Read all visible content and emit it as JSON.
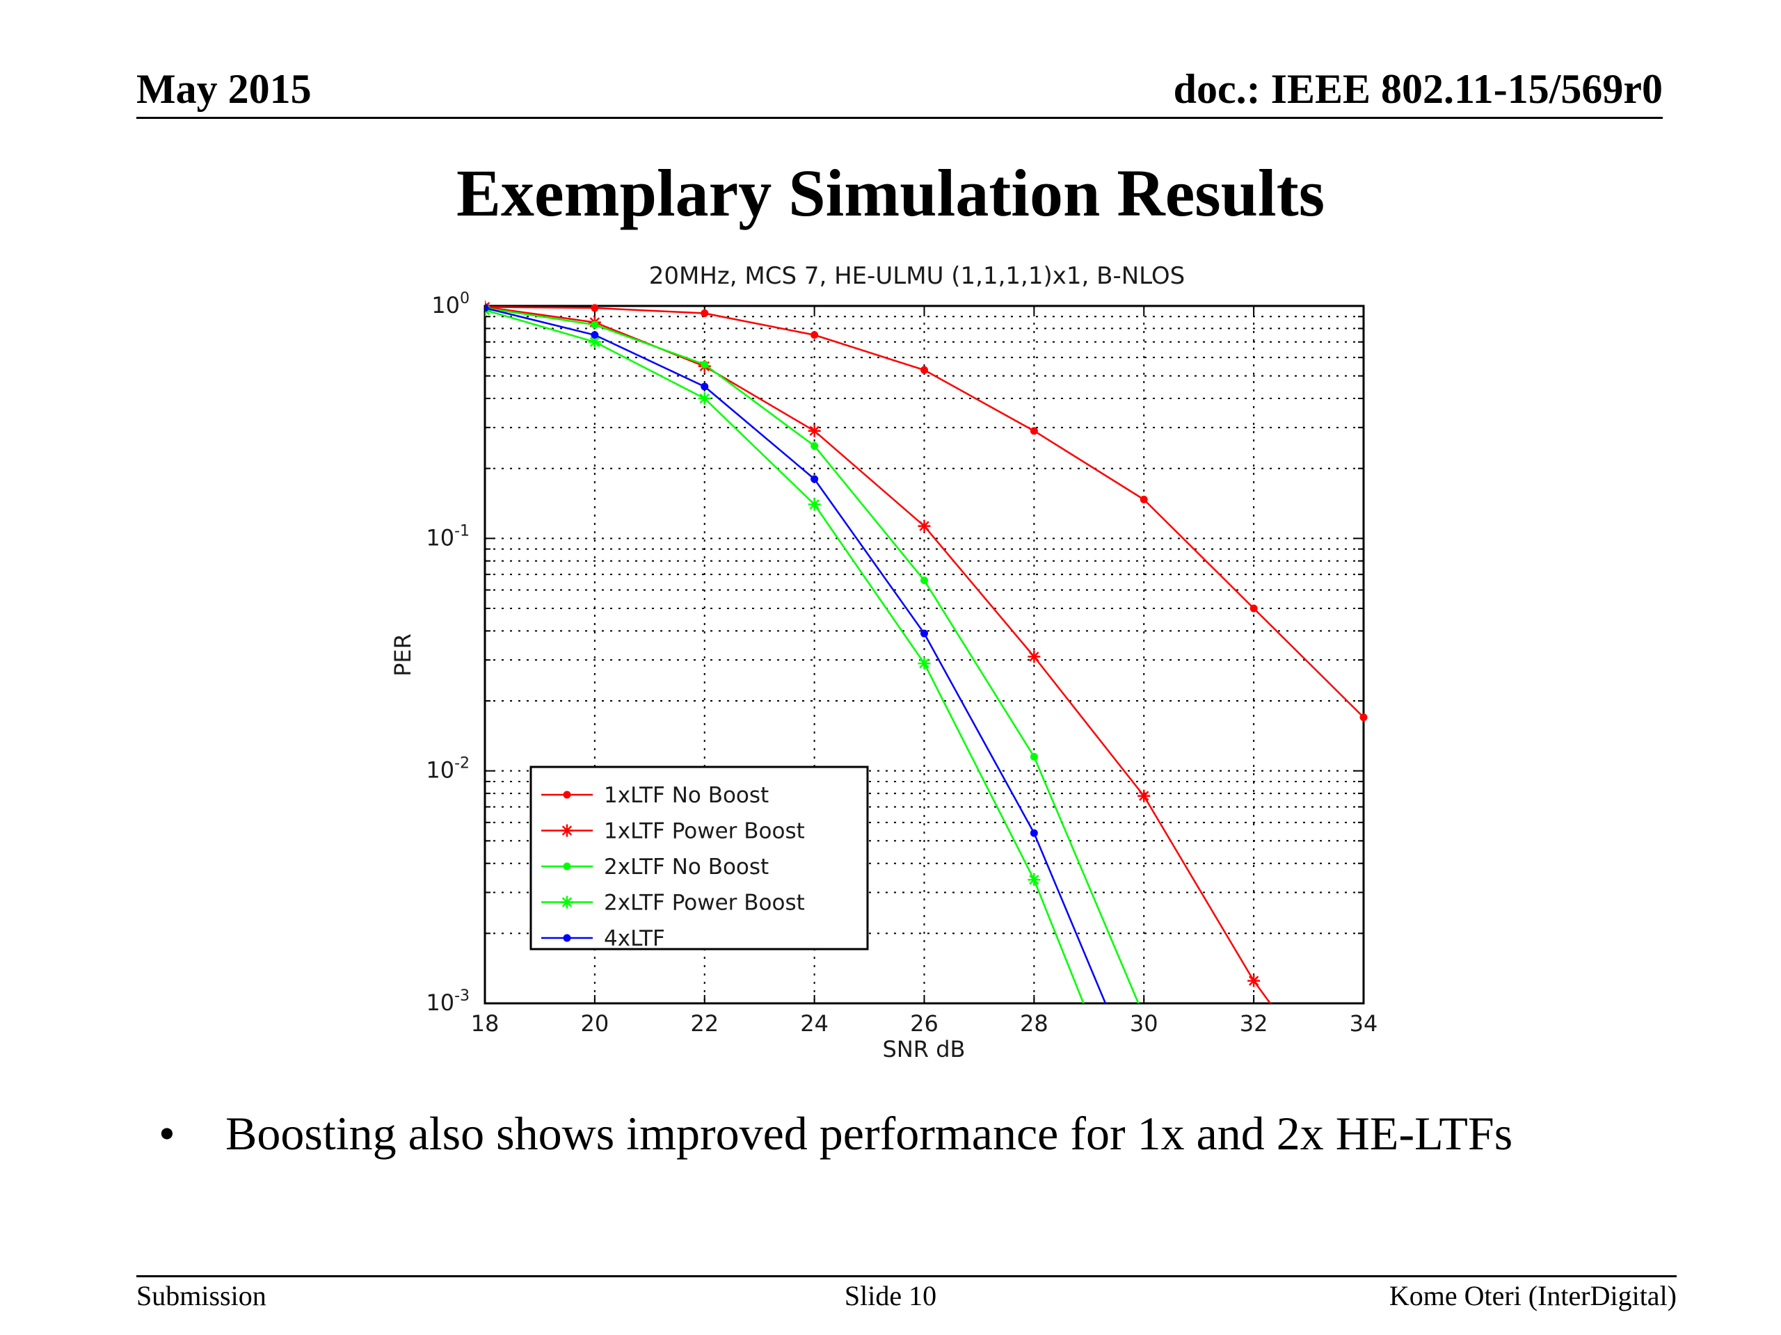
{
  "header": {
    "date": "May 2015",
    "doc": "doc.: IEEE 802.11-15/569r0"
  },
  "slide": {
    "title": "Exemplary Simulation Results",
    "bullets": [
      "Boosting also shows improved performance for 1x and 2x HE-LTFs"
    ],
    "bullet_marker": "•"
  },
  "footer": {
    "left": "Submission",
    "center": "Slide 10",
    "right": "Kome Oteri (InterDigital)"
  },
  "chart_data": {
    "type": "line",
    "title": "20MHz, MCS 7, HE-ULMU (1,1,1,1)x1, B-NLOS",
    "xlabel": "SNR dB",
    "ylabel": "PER",
    "xlim": [
      18,
      34
    ],
    "ylim": [
      0.001,
      1
    ],
    "yscale": "log",
    "grid": true,
    "legend_position": "bottom-left",
    "xticks": [
      18,
      20,
      22,
      24,
      26,
      28,
      30,
      32,
      34
    ],
    "yticks": [
      {
        "value": 1,
        "base": "10",
        "exp": "0"
      },
      {
        "value": 0.1,
        "base": "10",
        "exp": "-1"
      },
      {
        "value": 0.01,
        "base": "10",
        "exp": "-2"
      },
      {
        "value": 0.001,
        "base": "10",
        "exp": "-3"
      }
    ],
    "series": [
      {
        "name": "1xLTF No Boost",
        "color": "#ff0000",
        "marker": "dot",
        "x": [
          18,
          20,
          22,
          24,
          26,
          28,
          30,
          32,
          34
        ],
        "y": [
          0.99,
          0.98,
          0.93,
          0.75,
          0.53,
          0.29,
          0.147,
          0.05,
          0.017
        ]
      },
      {
        "name": "1xLTF Power Boost",
        "color": "#ff0000",
        "marker": "star",
        "x": [
          18,
          20,
          22,
          24,
          26,
          28,
          30,
          32,
          32.3
        ],
        "y": [
          0.99,
          0.85,
          0.55,
          0.29,
          0.113,
          0.031,
          0.0078,
          0.00125,
          0.001
        ]
      },
      {
        "name": "2xLTF No Boost",
        "color": "#00ff00",
        "marker": "dot",
        "x": [
          18,
          20,
          22,
          24,
          26,
          28,
          29.9
        ],
        "y": [
          0.98,
          0.83,
          0.56,
          0.25,
          0.066,
          0.0115,
          0.001
        ]
      },
      {
        "name": "2xLTF Power Boost",
        "color": "#00ff00",
        "marker": "star",
        "x": [
          18,
          20,
          22,
          24,
          26,
          28,
          28.9
        ],
        "y": [
          0.96,
          0.7,
          0.4,
          0.14,
          0.029,
          0.0034,
          0.001
        ]
      },
      {
        "name": "4xLTF",
        "color": "#0000ff",
        "marker": "dot",
        "x": [
          18,
          20,
          22,
          24,
          26,
          28,
          29.3
        ],
        "y": [
          0.98,
          0.75,
          0.45,
          0.18,
          0.039,
          0.0054,
          0.001
        ]
      }
    ]
  }
}
